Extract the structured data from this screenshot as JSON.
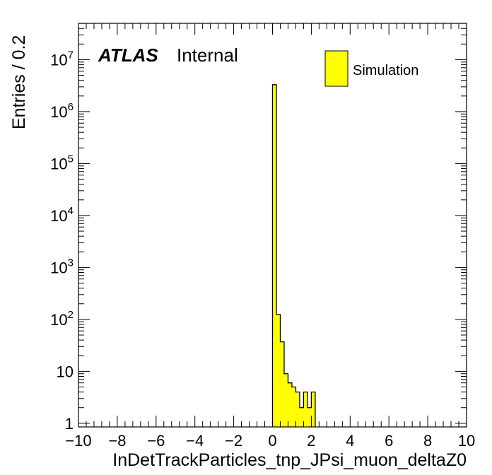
{
  "chart_data": {
    "type": "bar",
    "title": "",
    "xlabel": "InDetTrackParticles_tnp_JPsi_muon_deltaZ0",
    "ylabel": "Entries / 0.2",
    "xlim": [
      -10,
      10
    ],
    "ylim_log10": [
      -0.07,
      7.7
    ],
    "yscale": "log",
    "bin_width": 0.2,
    "x_tick_labels": [
      "−10",
      "−8",
      "−6",
      "−4",
      "−2",
      "0",
      "2",
      "4",
      "6",
      "8",
      "10"
    ],
    "y_tick_labels": [
      {
        "base": "1",
        "exp": ""
      },
      {
        "base": "10",
        "exp": ""
      },
      {
        "base": "10",
        "exp": "2"
      },
      {
        "base": "10",
        "exp": "3"
      },
      {
        "base": "10",
        "exp": "4"
      },
      {
        "base": "10",
        "exp": "5"
      },
      {
        "base": "10",
        "exp": "6"
      },
      {
        "base": "10",
        "exp": "7"
      }
    ],
    "bins": [
      {
        "x_low": 0.0,
        "x_high": 0.2,
        "value": 3300000
      },
      {
        "x_low": 0.2,
        "x_high": 0.4,
        "value": 125
      },
      {
        "x_low": 0.4,
        "x_high": 0.6,
        "value": 37
      },
      {
        "x_low": 0.6,
        "x_high": 0.8,
        "value": 9
      },
      {
        "x_low": 0.8,
        "x_high": 1.0,
        "value": 6
      },
      {
        "x_low": 1.0,
        "x_high": 1.2,
        "value": 5
      },
      {
        "x_low": 1.2,
        "x_high": 1.4,
        "value": 4
      },
      {
        "x_low": 1.4,
        "x_high": 1.6,
        "value": 2
      },
      {
        "x_low": 1.6,
        "x_high": 1.8,
        "value": 4
      },
      {
        "x_low": 1.8,
        "x_high": 2.0,
        "value": 2
      },
      {
        "x_low": 2.0,
        "x_high": 2.2,
        "value": 4
      }
    ],
    "fill_color": "#ffff00",
    "line_color": "#000000",
    "legend": {
      "label": "Simulation",
      "placement": "top-right"
    },
    "atlas_label": {
      "bold": "ATLAS",
      "text": "Internal"
    }
  }
}
